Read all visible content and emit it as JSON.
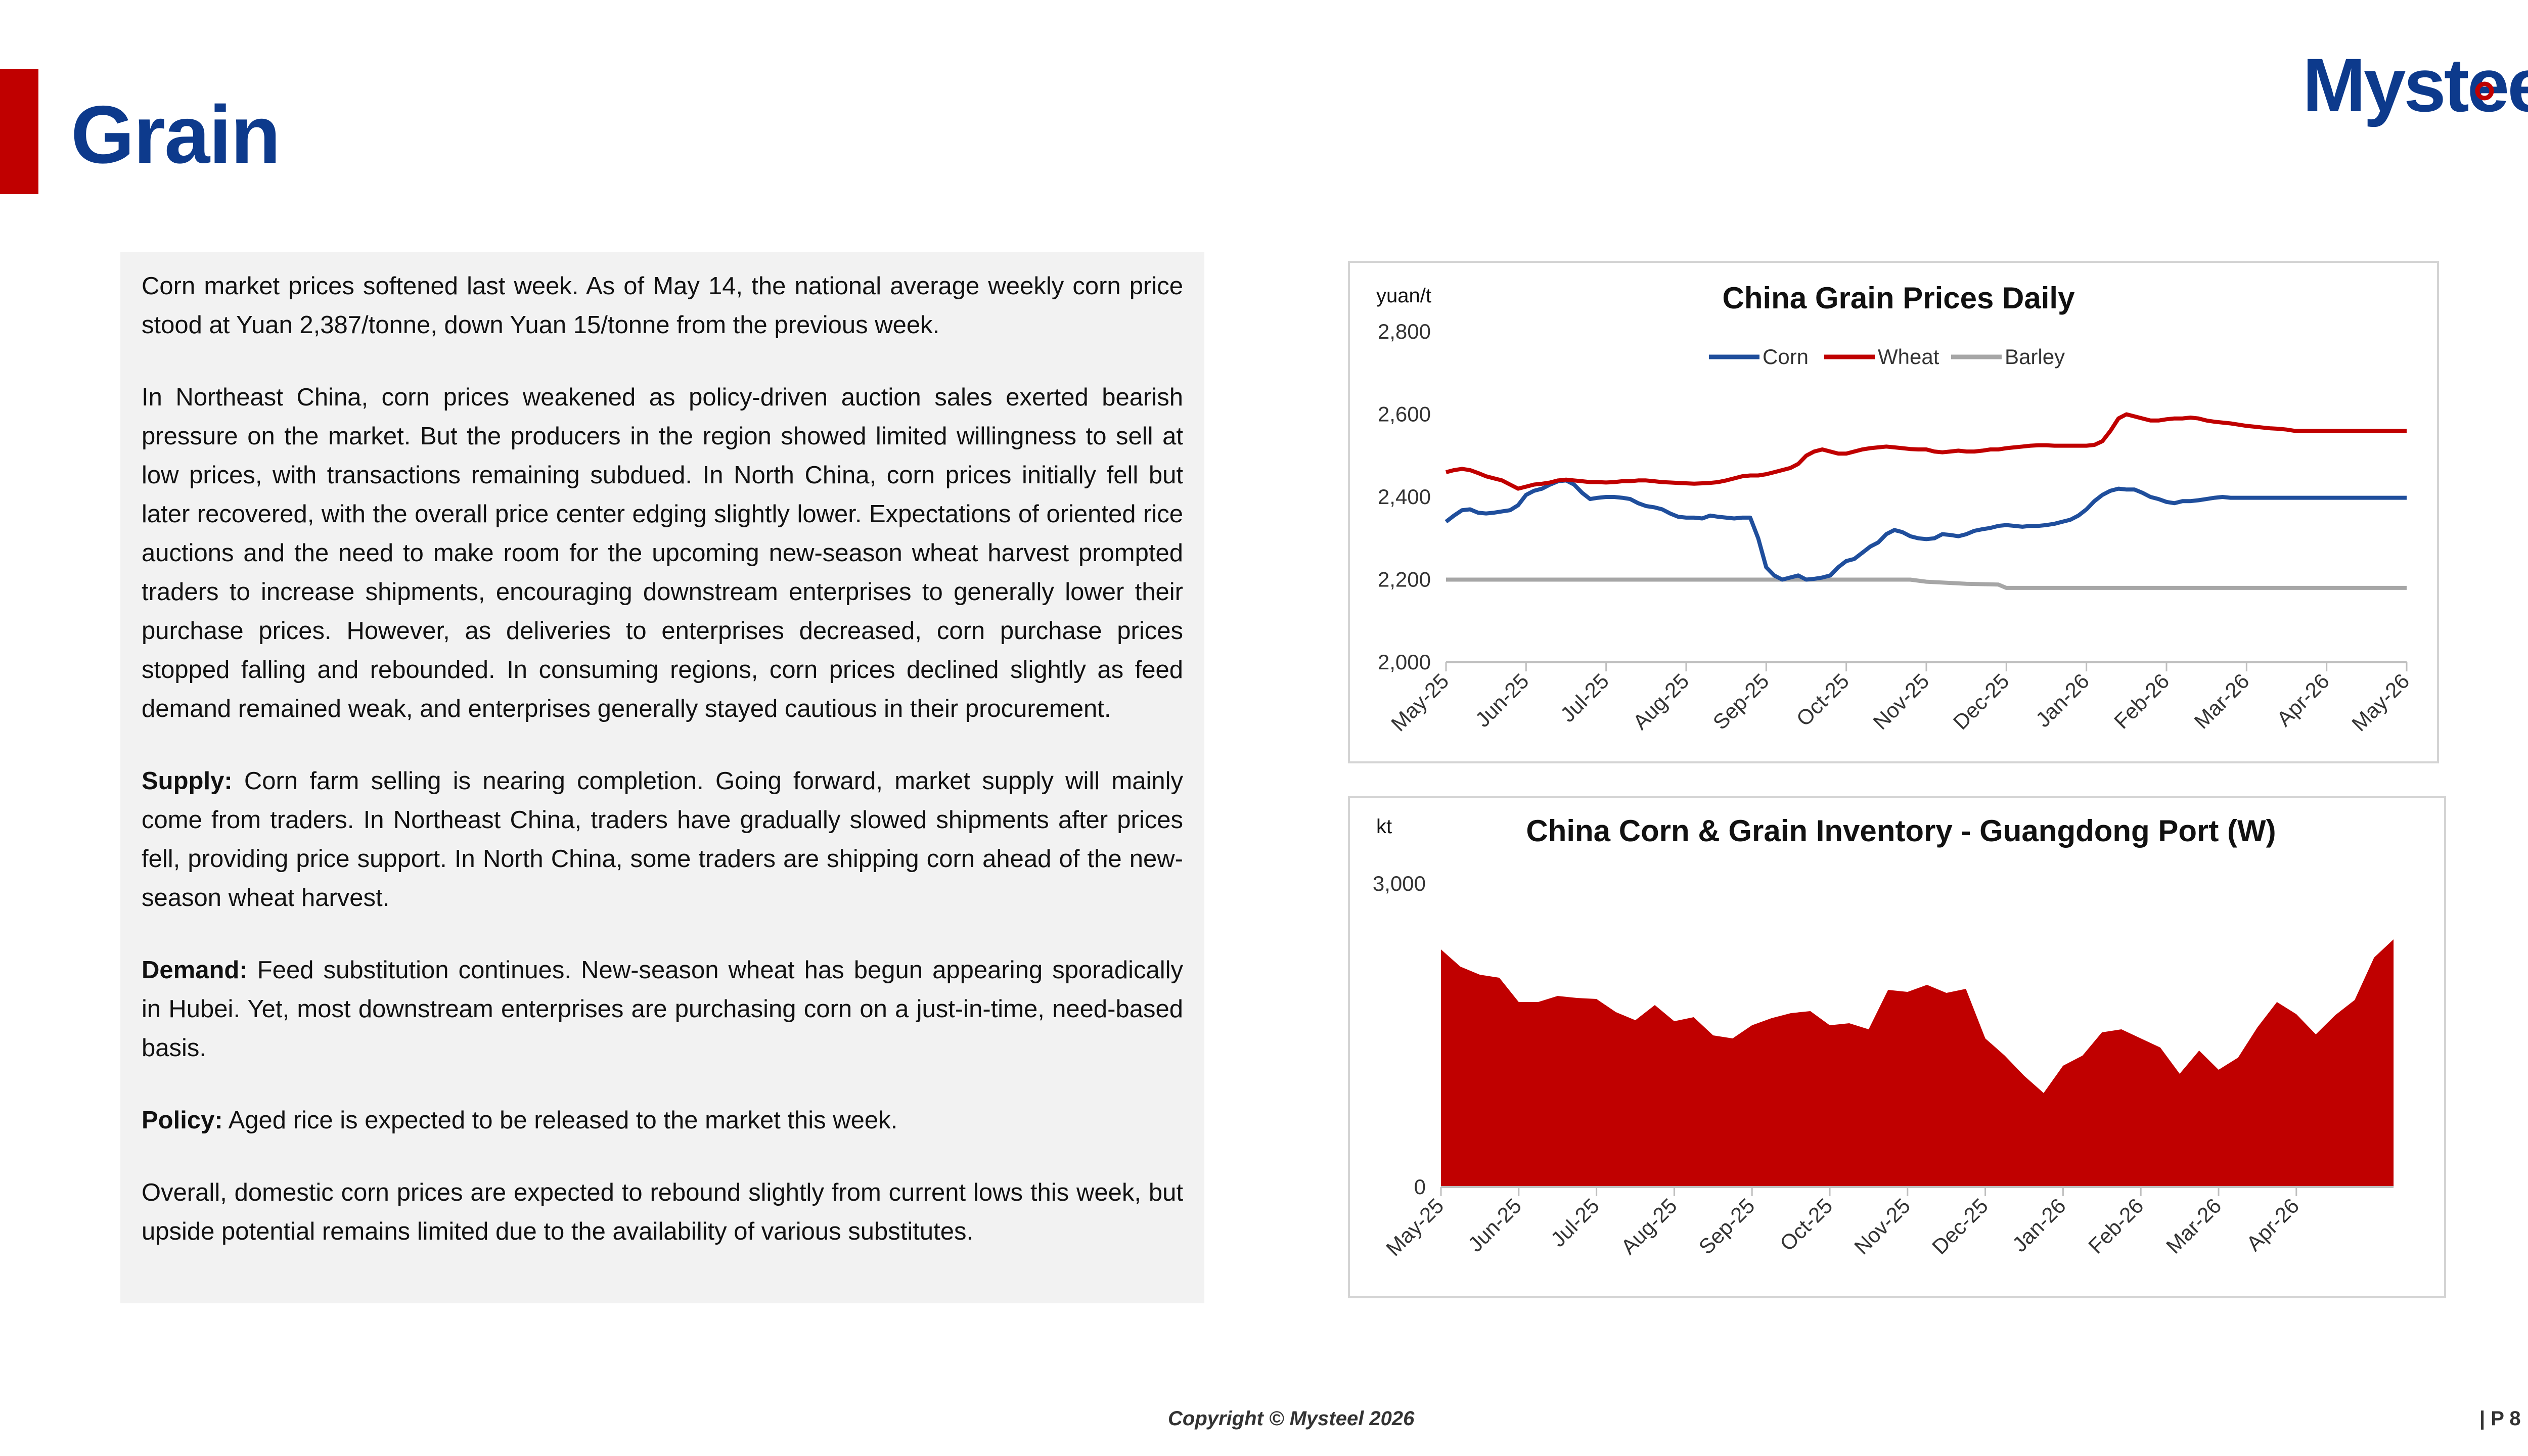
{
  "header": {
    "title": "Grain",
    "logo_text": "Mysteel"
  },
  "body": {
    "paragraphs": [
      {
        "lead": "",
        "text": "Corn market prices softened last week. As of May 14, the national average weekly corn price stood at Yuan 2,387/tonne, down Yuan 15/tonne from the previous week."
      },
      {
        "lead": "",
        "text": "In Northeast China, corn prices weakened as policy-driven auction sales exerted bearish pressure on the market. But the producers in the region showed limited willingness to sell at low prices, with transactions remaining subdued. In North China, corn prices initially fell but later recovered, with the overall price center edging slightly lower. Expectations of oriented rice auctions and the need to make room for the upcoming new-season wheat harvest prompted traders to increase shipments, encouraging downstream enterprises to generally lower their purchase prices. However, as deliveries to enterprises decreased, corn purchase prices stopped falling and rebounded. In consuming regions, corn prices declined slightly as feed demand remained weak, and enterprises generally stayed cautious in their procurement."
      },
      {
        "lead": "Supply:",
        "text": " Corn farm selling is nearing completion. Going forward, market supply will mainly come from traders. In Northeast China, traders have gradually slowed shipments after prices fell, providing price support. In North China, some traders are shipping corn ahead of the new-season wheat harvest."
      },
      {
        "lead": "Demand:",
        "text": " Feed substitution continues. New-season wheat has begun appearing sporadically in Hubei. Yet, most downstream enterprises are purchasing corn on a just-in-time, need-based basis."
      },
      {
        "lead": "Policy:",
        "text": " Aged rice is expected to be released to the market this week."
      },
      {
        "lead": "",
        "text": "Overall, domestic corn prices are expected to rebound slightly from current lows this week, but upside potential remains limited due to the availability of various substitutes."
      }
    ]
  },
  "chart_data": [
    {
      "type": "line",
      "title": "China Grain Prices Daily",
      "ylabel": "yuan/t",
      "ylim": [
        2000,
        2800
      ],
      "yticks": [
        "2,000",
        "2,200",
        "2,400",
        "2,600",
        "2,800"
      ],
      "categories": [
        "May-25",
        "Jun-25",
        "Jul-25",
        "Aug-25",
        "Sep-25",
        "Oct-25",
        "Nov-25",
        "Dec-25",
        "Jan-26",
        "Feb-26",
        "Mar-26",
        "Apr-26",
        "May-26"
      ],
      "legend": "top-center",
      "grid": false,
      "series": [
        {
          "name": "Corn",
          "color": "#1f4e9c",
          "x": [
            0,
            0.1,
            0.2,
            0.3,
            0.4,
            0.5,
            0.6,
            0.7,
            0.8,
            0.9,
            1.0,
            1.1,
            1.2,
            1.3,
            1.4,
            1.5,
            1.6,
            1.7,
            1.8,
            1.9,
            2.0,
            2.1,
            2.2,
            2.3,
            2.4,
            2.5,
            2.6,
            2.7,
            2.8,
            2.9,
            3.0,
            3.1,
            3.2,
            3.3,
            3.4,
            3.5,
            3.6,
            3.7,
            3.8,
            3.9,
            4.0,
            4.1,
            4.2,
            4.3,
            4.4,
            4.5,
            4.6,
            4.7,
            4.8,
            4.9,
            5.0,
            5.1,
            5.2,
            5.3,
            5.4,
            5.5,
            5.6,
            5.7,
            5.8,
            5.9,
            6.0,
            6.1,
            6.2,
            6.3,
            6.4,
            6.5,
            6.6,
            6.7,
            6.8,
            6.9,
            7.0,
            7.1,
            7.2,
            7.3,
            7.4,
            7.5,
            7.6,
            7.7,
            7.8,
            7.9,
            8.0,
            8.1,
            8.2,
            8.3,
            8.4,
            8.5,
            8.6,
            8.7,
            8.8,
            8.9,
            9.0,
            9.1,
            9.2,
            9.3,
            9.4,
            9.5,
            9.6,
            9.7,
            9.8,
            9.9,
            10.0,
            10.1,
            10.2,
            10.3,
            10.4,
            10.5,
            10.6,
            10.7,
            10.8,
            10.9,
            11.0,
            11.1,
            11.2,
            11.3,
            11.4,
            11.5,
            11.6,
            11.7,
            11.8,
            11.9,
            12.0
          ],
          "values": [
            2340,
            2355,
            2368,
            2370,
            2362,
            2360,
            2362,
            2365,
            2368,
            2380,
            2405,
            2415,
            2420,
            2430,
            2438,
            2440,
            2430,
            2410,
            2395,
            2398,
            2400,
            2400,
            2398,
            2395,
            2385,
            2378,
            2375,
            2370,
            2360,
            2352,
            2350,
            2350,
            2348,
            2355,
            2352,
            2350,
            2348,
            2350,
            2350,
            2300,
            2230,
            2210,
            2200,
            2205,
            2210,
            2200,
            2202,
            2205,
            2210,
            2230,
            2245,
            2250,
            2265,
            2280,
            2290,
            2310,
            2320,
            2315,
            2305,
            2300,
            2298,
            2300,
            2310,
            2308,
            2305,
            2310,
            2318,
            2322,
            2325,
            2330,
            2332,
            2330,
            2328,
            2330,
            2330,
            2332,
            2335,
            2340,
            2345,
            2355,
            2370,
            2390,
            2405,
            2415,
            2420,
            2418,
            2418,
            2410,
            2400,
            2395,
            2388,
            2385,
            2390,
            2390,
            2392,
            2395,
            2398,
            2400,
            2398,
            2398,
            2398,
            2398,
            2398,
            2398,
            2398,
            2398,
            2398,
            2398,
            2398,
            2398,
            2398,
            2398,
            2398,
            2398,
            2398,
            2398,
            2398,
            2398,
            2398,
            2398,
            2398
          ]
        },
        {
          "name": "Wheat",
          "color": "#c00000",
          "x": [
            0,
            0.1,
            0.2,
            0.3,
            0.4,
            0.5,
            0.6,
            0.7,
            0.8,
            0.9,
            1.0,
            1.1,
            1.2,
            1.3,
            1.4,
            1.5,
            1.6,
            1.7,
            1.8,
            1.9,
            2.0,
            2.1,
            2.2,
            2.3,
            2.4,
            2.5,
            2.6,
            2.7,
            2.8,
            2.9,
            3.0,
            3.1,
            3.2,
            3.3,
            3.4,
            3.5,
            3.6,
            3.7,
            3.8,
            3.9,
            4.0,
            4.1,
            4.2,
            4.3,
            4.4,
            4.5,
            4.6,
            4.7,
            4.8,
            4.9,
            5.0,
            5.1,
            5.2,
            5.3,
            5.4,
            5.5,
            5.6,
            5.7,
            5.8,
            5.9,
            6.0,
            6.1,
            6.2,
            6.3,
            6.4,
            6.5,
            6.6,
            6.7,
            6.8,
            6.9,
            7.0,
            7.1,
            7.2,
            7.3,
            7.4,
            7.5,
            7.6,
            7.7,
            7.8,
            7.9,
            8.0,
            8.1,
            8.2,
            8.3,
            8.4,
            8.5,
            8.6,
            8.7,
            8.8,
            8.9,
            9.0,
            9.1,
            9.2,
            9.3,
            9.4,
            9.5,
            9.6,
            9.7,
            9.8,
            9.9,
            10.0,
            10.1,
            10.2,
            10.3,
            10.4,
            10.5,
            10.6,
            10.7,
            10.8,
            10.9,
            11.0,
            11.1,
            11.2,
            11.3,
            11.4,
            11.5,
            11.6,
            11.7,
            11.8,
            11.9,
            12.0
          ],
          "values": [
            2460,
            2465,
            2468,
            2465,
            2458,
            2450,
            2445,
            2440,
            2430,
            2420,
            2425,
            2430,
            2432,
            2435,
            2440,
            2442,
            2440,
            2438,
            2436,
            2436,
            2435,
            2436,
            2438,
            2438,
            2440,
            2440,
            2438,
            2436,
            2435,
            2434,
            2433,
            2432,
            2433,
            2434,
            2436,
            2440,
            2445,
            2450,
            2452,
            2452,
            2455,
            2460,
            2465,
            2470,
            2480,
            2500,
            2510,
            2515,
            2510,
            2505,
            2505,
            2510,
            2515,
            2518,
            2520,
            2522,
            2520,
            2518,
            2516,
            2515,
            2515,
            2510,
            2508,
            2510,
            2512,
            2510,
            2510,
            2512,
            2515,
            2515,
            2518,
            2520,
            2522,
            2524,
            2525,
            2525,
            2524,
            2524,
            2524,
            2524,
            2524,
            2526,
            2535,
            2560,
            2590,
            2600,
            2595,
            2590,
            2585,
            2585,
            2588,
            2590,
            2590,
            2592,
            2590,
            2585,
            2582,
            2580,
            2578,
            2575,
            2572,
            2570,
            2568,
            2566,
            2565,
            2563,
            2560,
            2560,
            2560,
            2560,
            2560,
            2560,
            2560,
            2560,
            2560,
            2560,
            2560,
            2560,
            2560,
            2560,
            2560
          ]
        },
        {
          "name": "Barley",
          "color": "#a6a6a6",
          "x": [
            0,
            1,
            2,
            3,
            4,
            5,
            5.4,
            5.8,
            6,
            6.5,
            6.9,
            7.0,
            8,
            9,
            10,
            11,
            12
          ],
          "values": [
            2200,
            2200,
            2200,
            2200,
            2200,
            2200,
            2200,
            2200,
            2195,
            2190,
            2188,
            2180,
            2180,
            2180,
            2180,
            2180,
            2180
          ]
        }
      ]
    },
    {
      "type": "area",
      "title": "China Corn & Grain Inventory - Guangdong Port (W)",
      "ylabel": "kt",
      "ylim": [
        0,
        3000
      ],
      "yticks": [
        "0",
        "3,000"
      ],
      "categories": [
        "May-25",
        "Jun-25",
        "Jul-25",
        "Aug-25",
        "Sep-25",
        "Oct-25",
        "Nov-25",
        "Dec-25",
        "Jan-26",
        "Feb-26",
        "Mar-26",
        "Apr-26"
      ],
      "grid": false,
      "series": [
        {
          "name": "",
          "color": "#c00000",
          "x": [
            0,
            0.25,
            0.5,
            0.75,
            1.0,
            1.25,
            1.5,
            1.75,
            2.0,
            2.25,
            2.5,
            2.75,
            3.0,
            3.25,
            3.5,
            3.75,
            4.0,
            4.25,
            4.5,
            4.75,
            5.0,
            5.25,
            5.5,
            5.75,
            6.0,
            6.25,
            6.5,
            6.75,
            7.0,
            7.25,
            7.5,
            7.75,
            8.0,
            8.25,
            8.5,
            8.75,
            9.0,
            9.25,
            9.5,
            9.75,
            10.0,
            10.25,
            10.5,
            10.75,
            11.0,
            11.25,
            11.5,
            11.75,
            12.0,
            12.25
          ],
          "values": [
            2350,
            2180,
            2100,
            2070,
            1830,
            1830,
            1890,
            1870,
            1860,
            1730,
            1650,
            1800,
            1640,
            1680,
            1500,
            1470,
            1600,
            1670,
            1720,
            1740,
            1600,
            1620,
            1560,
            1950,
            1930,
            2000,
            1920,
            1960,
            1470,
            1300,
            1100,
            930,
            1200,
            1300,
            1530,
            1560,
            1470,
            1380,
            1120,
            1350,
            1160,
            1280,
            1580,
            1830,
            1710,
            1510,
            1700,
            1850,
            2270,
            2450
          ]
        }
      ]
    }
  ],
  "footer": {
    "copyright": "Copyright © Mysteel 2026",
    "page": "| P 8"
  }
}
